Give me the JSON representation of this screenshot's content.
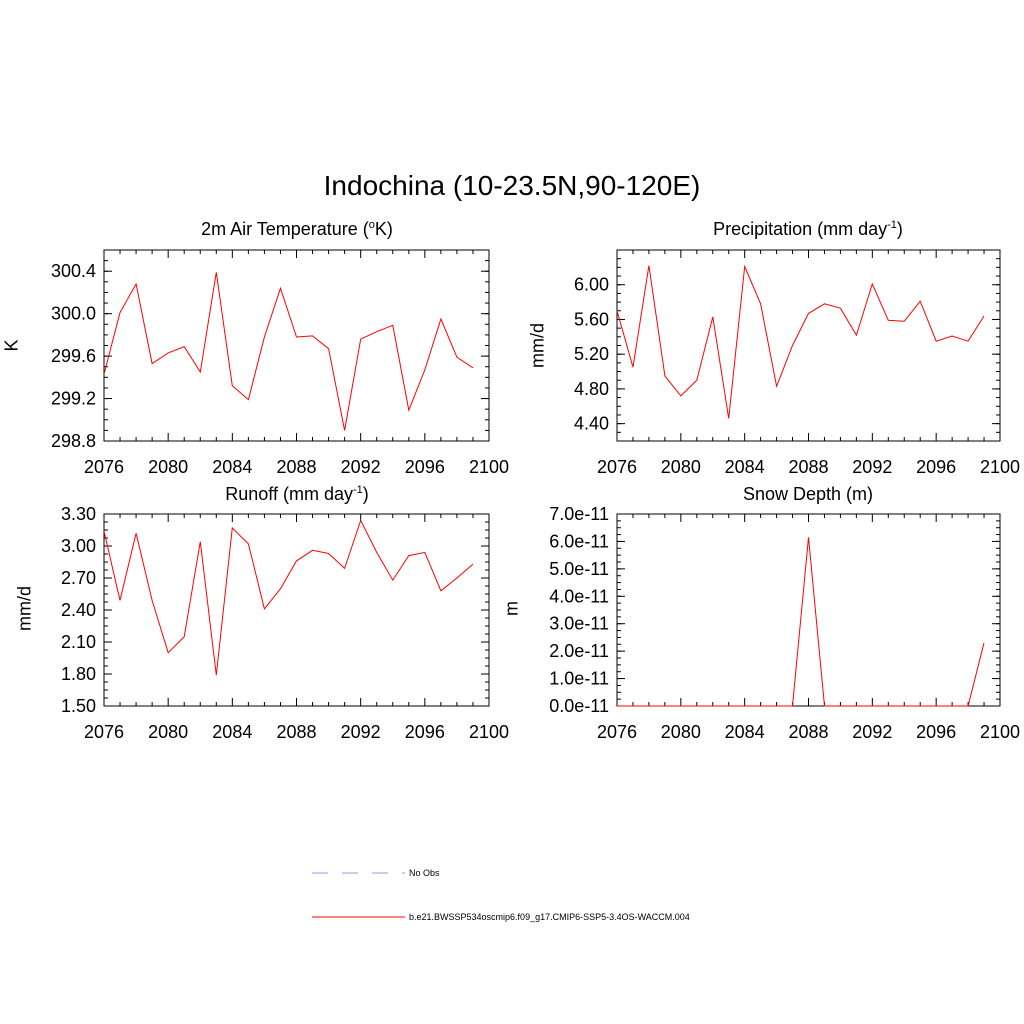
{
  "figure": {
    "title": "Indochina (10-23.5N,90-120E)"
  },
  "legend": [
    {
      "label": "No Obs",
      "color": "#9999dd",
      "dash": true
    },
    {
      "label": "b.e21.BWSSP534oscmip6.f09_g17.CMIP6-SSP5-3.4OS-WACCM.004",
      "color": "#ff0000",
      "dash": false
    }
  ],
  "colors": {
    "series": "#ff0000",
    "obs": "#9999dd"
  },
  "chart_data": [
    {
      "type": "line",
      "title": "2m Air Temperature (",
      "title_sup": "o",
      "title_after": "K)",
      "ylabel": "K",
      "xlim": [
        2076,
        2100
      ],
      "ylim": [
        298.8,
        300.6
      ],
      "xticks": [
        2076,
        2080,
        2084,
        2088,
        2092,
        2096,
        2100
      ],
      "yticks": [
        298.8,
        299.2,
        299.6,
        300.0,
        300.4
      ],
      "ytick_labels": [
        "298.8",
        "299.2",
        "299.6",
        "300.0",
        "300.4"
      ],
      "x": [
        2076,
        2077,
        2078,
        2079,
        2080,
        2081,
        2082,
        2083,
        2084,
        2085,
        2086,
        2087,
        2088,
        2089,
        2090,
        2091,
        2092,
        2093,
        2094,
        2095,
        2096,
        2097,
        2098,
        2099
      ],
      "series": [
        {
          "name": "b.e21.BWSSP534oscmip6.f09_g17.CMIP6-SSP5-3.4OS-WACCM.004",
          "values": [
            299.43,
            300.01,
            300.28,
            299.53,
            299.63,
            299.69,
            299.45,
            300.39,
            299.32,
            299.19,
            299.78,
            300.24,
            299.78,
            299.79,
            299.67,
            298.9,
            299.76,
            299.83,
            299.89,
            299.09,
            299.47,
            299.95,
            299.59,
            299.49
          ]
        }
      ]
    },
    {
      "type": "line",
      "title": "Precipitation (mm day",
      "title_sup": "-1",
      "title_after": ")",
      "ylabel": "mm/d",
      "xlim": [
        2076,
        2100
      ],
      "ylim": [
        4.2,
        6.4
      ],
      "xticks": [
        2076,
        2080,
        2084,
        2088,
        2092,
        2096,
        2100
      ],
      "yticks": [
        4.4,
        4.8,
        5.2,
        5.6,
        6.0
      ],
      "ytick_labels": [
        "4.40",
        "4.80",
        "5.20",
        "5.60",
        "6.00"
      ],
      "x": [
        2076,
        2077,
        2078,
        2079,
        2080,
        2081,
        2082,
        2083,
        2084,
        2085,
        2086,
        2087,
        2088,
        2089,
        2090,
        2091,
        2092,
        2093,
        2094,
        2095,
        2096,
        2097,
        2098,
        2099
      ],
      "series": [
        {
          "name": "b.e21.BWSSP534oscmip6.f09_g17.CMIP6-SSP5-3.4OS-WACCM.004",
          "values": [
            5.7,
            5.05,
            6.22,
            4.95,
            4.72,
            4.9,
            5.63,
            4.46,
            6.21,
            5.78,
            4.83,
            5.3,
            5.67,
            5.78,
            5.73,
            5.42,
            6.01,
            5.59,
            5.58,
            5.81,
            5.35,
            5.41,
            5.35,
            5.64
          ]
        }
      ]
    },
    {
      "type": "line",
      "title": "Runoff (mm day",
      "title_sup": "-1",
      "title_after": ")",
      "ylabel": "mm/d",
      "xlim": [
        2076,
        2100
      ],
      "ylim": [
        1.5,
        3.3
      ],
      "xticks": [
        2076,
        2080,
        2084,
        2088,
        2092,
        2096,
        2100
      ],
      "yticks": [
        1.5,
        1.8,
        2.1,
        2.4,
        2.7,
        3.0,
        3.3
      ],
      "ytick_labels": [
        "1.50",
        "1.80",
        "2.10",
        "2.40",
        "2.70",
        "3.00",
        "3.30"
      ],
      "x": [
        2076,
        2077,
        2078,
        2079,
        2080,
        2081,
        2082,
        2083,
        2084,
        2085,
        2086,
        2087,
        2088,
        2089,
        2090,
        2091,
        2092,
        2093,
        2094,
        2095,
        2096,
        2097,
        2098,
        2099
      ],
      "series": [
        {
          "name": "b.e21.BWSSP534oscmip6.f09_g17.CMIP6-SSP5-3.4OS-WACCM.004",
          "values": [
            3.14,
            2.49,
            3.12,
            2.49,
            2.0,
            2.15,
            3.04,
            1.79,
            3.17,
            3.02,
            2.41,
            2.6,
            2.86,
            2.96,
            2.93,
            2.79,
            3.24,
            2.94,
            2.68,
            2.91,
            2.94,
            2.58,
            2.7,
            2.83
          ]
        }
      ]
    },
    {
      "type": "line",
      "title": "Snow Depth (m)",
      "title_sup": "",
      "title_after": "",
      "ylabel": "m",
      "xlim": [
        2076,
        2100
      ],
      "ylim": [
        0,
        7e-11
      ],
      "xticks": [
        2076,
        2080,
        2084,
        2088,
        2092,
        2096,
        2100
      ],
      "yticks": [
        0,
        1e-11,
        2e-11,
        3e-11,
        4e-11,
        5e-11,
        6e-11,
        7e-11
      ],
      "ytick_labels": [
        "0.0e-11",
        "1.0e-11",
        "2.0e-11",
        "3.0e-11",
        "4.0e-11",
        "5.0e-11",
        "6.0e-11",
        "7.0e-11"
      ],
      "x": [
        2076,
        2077,
        2078,
        2079,
        2080,
        2081,
        2082,
        2083,
        2084,
        2085,
        2086,
        2087,
        2088,
        2089,
        2090,
        2091,
        2092,
        2093,
        2094,
        2095,
        2096,
        2097,
        2098,
        2099
      ],
      "series": [
        {
          "name": "b.e21.BWSSP534oscmip6.f09_g17.CMIP6-SSP5-3.4OS-WACCM.004",
          "values": [
            0,
            0,
            0,
            0,
            0,
            0,
            0,
            0,
            0,
            0,
            0,
            0,
            6.15e-11,
            0,
            0,
            0,
            0,
            0,
            0,
            0,
            0,
            0,
            0,
            2.3e-11
          ]
        }
      ]
    }
  ]
}
